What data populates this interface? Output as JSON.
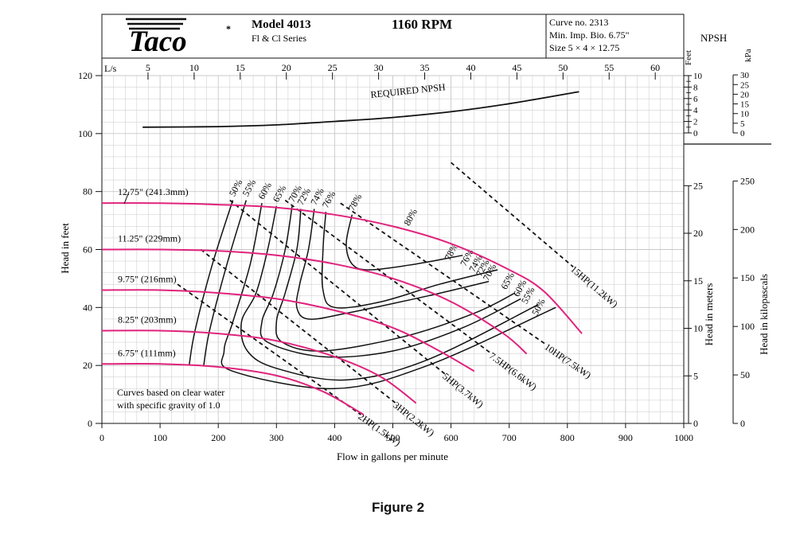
{
  "header": {
    "brand": "Taco",
    "model": "Model 4013",
    "series": "Fl & Cl Series",
    "rpm": "1160 RPM",
    "curve_no": "Curve no. 2313",
    "min_imp": "Min. Imp. Bio. 6.75\"",
    "size": "Size 5 × 4 × 12.75",
    "npsh_title": "NPSH",
    "feet_label": "Feet",
    "kpa_label": "kPa",
    "ls_label": "L/s"
  },
  "caption": "Figure 2",
  "note_line1": "Curves based on clear water",
  "note_line2": "with specific gravity of 1.0",
  "required_npsh_label": "REQUIRED NPSH",
  "colors": {
    "impeller": "#e0237d",
    "curve": "#111111",
    "grid": "#c8c8c8"
  },
  "chart_data": {
    "type": "line",
    "xlabel": "Flow in gallons per minute",
    "ylabel": "Head in feet",
    "ylabel_right1": "Head in meters",
    "ylabel_right2": "Head in kilopascals",
    "xlim": [
      0,
      1000
    ],
    "ylim": [
      0,
      120
    ],
    "x_ticks": [
      0,
      100,
      200,
      300,
      400,
      500,
      600,
      700,
      800,
      900,
      1000
    ],
    "y_ticks": [
      0,
      20,
      40,
      60,
      80,
      100,
      120
    ],
    "ls_ticks": [
      5,
      10,
      15,
      20,
      25,
      30,
      35,
      40,
      45,
      50,
      55,
      60
    ],
    "meter_ticks": [
      0,
      5,
      10,
      15,
      20,
      25
    ],
    "kpa_ticks": [
      0,
      50,
      100,
      150,
      200,
      250
    ],
    "npsh_feet_ticks": [
      0,
      2,
      4,
      6,
      8,
      10
    ],
    "npsh_kpa_ticks": [
      0,
      5,
      10,
      15,
      20,
      25,
      30
    ],
    "impellers": [
      {
        "name": "12.75\" (241.3mm)",
        "x": [
          0,
          100,
          200,
          300,
          400,
          500,
          600,
          700,
          760,
          825
        ],
        "y": [
          76,
          76,
          75.5,
          74.5,
          72,
          68,
          62,
          53,
          45.5,
          31
        ]
      },
      {
        "name": "11.25\" (229mm)",
        "x": [
          0,
          100,
          200,
          300,
          400,
          500,
          600,
          690,
          730
        ],
        "y": [
          60,
          60,
          59.5,
          58,
          55,
          50,
          42,
          31,
          24
        ]
      },
      {
        "name": "9.75\" (216mm)",
        "x": [
          0,
          100,
          200,
          300,
          400,
          500,
          580,
          640
        ],
        "y": [
          46,
          46,
          45,
          43,
          39,
          33,
          25,
          18
        ]
      },
      {
        "name": "8.25\" (203mm)",
        "x": [
          0,
          100,
          200,
          300,
          400,
          480,
          540
        ],
        "y": [
          32,
          32,
          31,
          28.5,
          23,
          16,
          7
        ]
      },
      {
        "name": "6.75\" (111mm)",
        "x": [
          0,
          100,
          200,
          300,
          380,
          450
        ],
        "y": [
          20.5,
          20.5,
          19.5,
          16.5,
          11,
          3
        ]
      }
    ],
    "efficiency": [
      {
        "name": "50%",
        "x": [
          225,
          190,
          160,
          150
        ],
        "y": [
          77,
          55,
          32,
          20
        ]
      },
      {
        "name": "55%",
        "x": [
          248,
          215,
          185,
          175
        ],
        "y": [
          77,
          55,
          32,
          20
        ]
      },
      {
        "name": "60%",
        "x": [
          275,
          255,
          225,
          210,
          225,
          400,
          560,
          780
        ],
        "y": [
          76,
          55,
          35,
          25,
          18,
          12,
          20,
          40
        ]
      },
      {
        "name": "65%",
        "x": [
          300,
          285,
          265,
          240,
          250,
          300,
          420,
          560,
          750
        ],
        "y": [
          75,
          60,
          45,
          35,
          25,
          19,
          15,
          22,
          41
        ]
      },
      {
        "name": "70%",
        "x": [
          327,
          315,
          295,
          275,
          285,
          380,
          500,
          620,
          720
        ],
        "y": [
          75,
          60,
          45,
          35,
          28,
          23,
          25,
          33,
          43
        ]
      },
      {
        "name": "72%",
        "x": [
          342,
          335,
          315,
          300,
          310,
          380,
          520,
          640,
          710
        ],
        "y": [
          74,
          60,
          45,
          35,
          28,
          25,
          30,
          38,
          45
        ]
      },
      {
        "name": "74%",
        "x": [
          365,
          355,
          340,
          335,
          355,
          420,
          560,
          665
        ],
        "y": [
          74,
          60,
          48,
          40,
          36,
          38,
          44,
          49
        ]
      },
      {
        "name": "76%",
        "x": [
          385,
          380,
          380,
          400,
          480,
          580,
          680
        ],
        "y": [
          73,
          60,
          46,
          40,
          42,
          48,
          53
        ]
      },
      {
        "name": "78%",
        "x": [
          430,
          420,
          430,
          460,
          540,
          620
        ],
        "y": [
          72,
          62,
          55,
          53,
          55,
          58
        ]
      }
    ],
    "power": [
      {
        "name": "2HP(1.5kW)",
        "x": [
          130,
          445
        ],
        "y": [
          48,
          3
        ]
      },
      {
        "name": "3HP(2.2kW)",
        "x": [
          170,
          505
        ],
        "y": [
          60,
          7
        ]
      },
      {
        "name": "5HP(3.7kW)",
        "x": [
          220,
          590
        ],
        "y": [
          77,
          17
        ]
      },
      {
        "name": "7.5HP(6.6kW)",
        "x": [
          315,
          670
        ],
        "y": [
          77,
          24
        ]
      },
      {
        "name": "10HP(7.5kW)",
        "x": [
          410,
          765
        ],
        "y": [
          76,
          27
        ]
      },
      {
        "name": "15HP(11.2kW)",
        "x": [
          600,
          810
        ],
        "y": [
          90,
          54
        ]
      }
    ],
    "required_npsh": {
      "x": [
        70,
        200,
        300,
        400,
        500,
        600,
        700,
        820
      ],
      "y": [
        1,
        1.1,
        1.4,
        2,
        2.7,
        3.7,
        5.1,
        7.2
      ]
    }
  }
}
